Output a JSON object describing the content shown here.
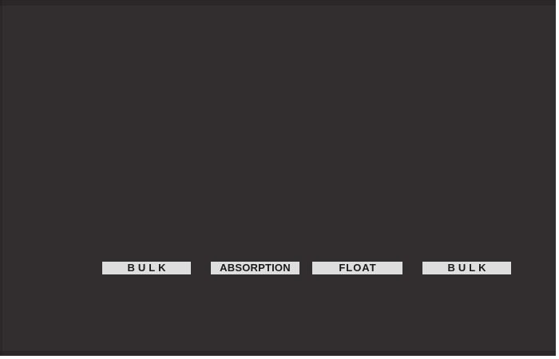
{
  "colors": {
    "page_background": "#ffffff",
    "frame_background": "#322d2e",
    "label_background": "#dedede",
    "label_text": "#1a1a1a"
  },
  "stages": [
    {
      "label": "BULK"
    },
    {
      "label": "ABSORPTION"
    },
    {
      "label": "FLOAT"
    },
    {
      "label": "BULK"
    }
  ]
}
